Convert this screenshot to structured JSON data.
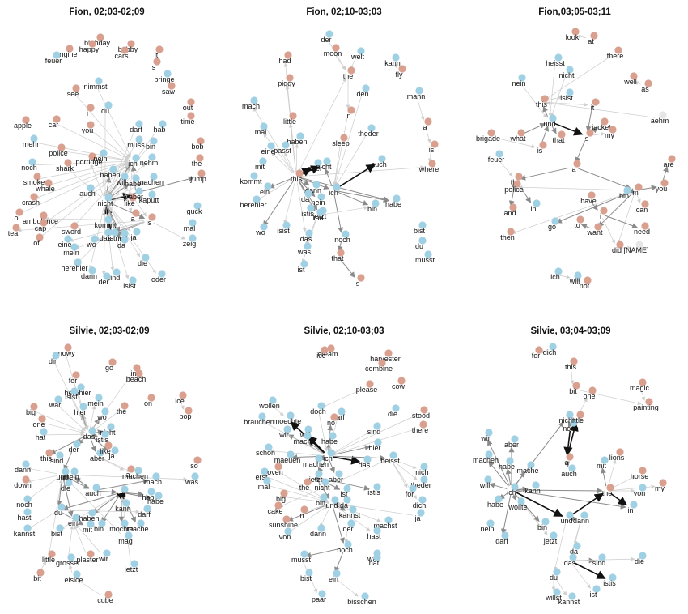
{
  "colors": {
    "english": "#d9a08f",
    "german": "#9fd0e3",
    "neutral": "#e6e6e6",
    "edge_light": "#cccccc",
    "edge_mid": "#8a8a8a",
    "edge_dark": "#111111"
  },
  "panels": [
    {
      "title": "Fion, 02;03-02;09",
      "nodes": [
        [
          "birthday",
          "e"
        ],
        [
          "happy",
          "e"
        ],
        [
          "bobby",
          "e"
        ],
        [
          "cars",
          "e"
        ],
        [
          "engine",
          "e"
        ],
        [
          "feuer",
          "g"
        ],
        [
          "it",
          "e"
        ],
        [
          "s",
          "e"
        ],
        [
          "bringe",
          "g"
        ],
        [
          "saw",
          "e"
        ],
        [
          "nimmst",
          "g"
        ],
        [
          "see",
          "e"
        ],
        [
          "du",
          "g"
        ],
        [
          "i",
          "e"
        ],
        [
          "you",
          "e"
        ],
        [
          "out",
          "e"
        ],
        [
          "time",
          "e"
        ],
        [
          "apple",
          "e"
        ],
        [
          "car",
          "e"
        ],
        [
          "darf",
          "g"
        ],
        [
          "hab",
          "g"
        ],
        [
          "mehr",
          "g"
        ],
        [
          "police",
          "e"
        ],
        [
          "muss",
          "g"
        ],
        [
          "bin",
          "g"
        ],
        [
          "bob",
          "e"
        ],
        [
          "noch",
          "g"
        ],
        [
          "shark",
          "e"
        ],
        [
          "porridge",
          "e"
        ],
        [
          "nein",
          "g"
        ],
        [
          "ich",
          "g"
        ],
        [
          "nehm",
          "g"
        ],
        [
          "the",
          "e"
        ],
        [
          "smoke",
          "e"
        ],
        [
          "whale",
          "e"
        ],
        [
          "haben",
          "g"
        ],
        [
          "will",
          "g"
        ],
        [
          "habe",
          "g"
        ],
        [
          "machen",
          "g"
        ],
        [
          "jump",
          "e"
        ],
        [
          "crash",
          "e"
        ],
        [
          "auch",
          "g"
        ],
        [
          "nicht",
          "g"
        ],
        [
          "like",
          "e"
        ],
        [
          "aber",
          "g"
        ],
        [
          "kaputt",
          "g"
        ],
        [
          "ambulance",
          "e"
        ],
        [
          "o",
          "e"
        ],
        [
          "tea",
          "e"
        ],
        [
          "cap",
          "e"
        ],
        [
          "sword",
          "e"
        ],
        [
          "kommt",
          "g"
        ],
        [
          "a",
          "e"
        ],
        [
          "is",
          "e"
        ],
        [
          "guck",
          "g"
        ],
        [
          "of",
          "e"
        ],
        [
          "eine",
          "g"
        ],
        [
          "wo",
          "g"
        ],
        [
          "das",
          "g"
        ],
        [
          "ist",
          "g"
        ],
        [
          "und",
          "g"
        ],
        [
          "da",
          "g"
        ],
        [
          "ja",
          "g"
        ],
        [
          "mal",
          "g"
        ],
        [
          "zeig",
          "g"
        ],
        [
          "mein",
          "g"
        ],
        [
          "herehier",
          "g"
        ],
        [
          "die",
          "g"
        ],
        [
          "dann",
          "g"
        ],
        [
          "sind",
          "g"
        ],
        [
          "oder",
          "g"
        ],
        [
          "der",
          "g"
        ],
        [
          "isist",
          "g"
        ]
      ]
    },
    {
      "title": "Fion, 02;10-03;03",
      "nodes": [
        [
          "der",
          "g"
        ],
        [
          "moon",
          "e"
        ],
        [
          "welt",
          "g"
        ],
        [
          "had",
          "e"
        ],
        [
          "kann",
          "g"
        ],
        [
          "fly",
          "e"
        ],
        [
          "piggy",
          "e"
        ],
        [
          "the",
          "e"
        ],
        [
          "den",
          "g"
        ],
        [
          "mach",
          "g"
        ],
        [
          "mann",
          "g"
        ],
        [
          "in",
          "e"
        ],
        [
          "theder",
          "g"
        ],
        [
          "little",
          "e"
        ],
        [
          "mal",
          "g"
        ],
        [
          "a",
          "e"
        ],
        [
          "haben",
          "g"
        ],
        [
          "passt",
          "g"
        ],
        [
          "sleep",
          "e"
        ],
        [
          "eine",
          "g"
        ],
        [
          "is",
          "e"
        ],
        [
          "mit",
          "g"
        ],
        [
          "where",
          "e"
        ],
        [
          "kommt",
          "g"
        ],
        [
          "this",
          "e"
        ],
        [
          "aber",
          "g"
        ],
        [
          "nicht",
          "g"
        ],
        [
          "auch",
          "g"
        ],
        [
          "ein",
          "g"
        ],
        [
          "dann",
          "g"
        ],
        [
          "da",
          "g"
        ],
        [
          "nein",
          "g"
        ],
        [
          "ich",
          "g"
        ],
        [
          "herehier",
          "g"
        ],
        [
          "istis",
          "g"
        ],
        [
          "jetzt",
          "g"
        ],
        [
          "habe",
          "g"
        ],
        [
          "und",
          "g"
        ],
        [
          "bin",
          "g"
        ],
        [
          "wo",
          "g"
        ],
        [
          "isist",
          "g"
        ],
        [
          "das",
          "g"
        ],
        [
          "noch",
          "g"
        ],
        [
          "bist",
          "g"
        ],
        [
          "du",
          "g"
        ],
        [
          "was",
          "g"
        ],
        [
          "that",
          "e"
        ],
        [
          "musst",
          "g"
        ],
        [
          "ist",
          "g"
        ],
        [
          "s",
          "e"
        ]
      ]
    },
    {
      "title": "Fion,03;05-03;11",
      "nodes": [
        [
          "look",
          "e"
        ],
        [
          "at",
          "e"
        ],
        [
          "there",
          "e"
        ],
        [
          "heisst",
          "g"
        ],
        [
          "nicht",
          "g"
        ],
        [
          "nein",
          "g"
        ],
        [
          "well",
          "e"
        ],
        [
          "as",
          "e"
        ],
        [
          "isist",
          "g"
        ],
        [
          "this",
          "e"
        ],
        [
          "it",
          "e"
        ],
        [
          "jacket",
          "e"
        ],
        [
          "aehm",
          "n"
        ],
        [
          "brigade",
          "e"
        ],
        [
          "what",
          "e"
        ],
        [
          "und",
          "g"
        ],
        [
          "my",
          "e"
        ],
        [
          "that",
          "e"
        ],
        [
          "s",
          "e"
        ],
        [
          "is",
          "e"
        ],
        [
          "feuer",
          "g"
        ],
        [
          "are",
          "e"
        ],
        [
          "a",
          "e"
        ],
        [
          "the",
          "e"
        ],
        [
          "you",
          "e"
        ],
        [
          "police",
          "e"
        ],
        [
          "bin",
          "g"
        ],
        [
          "m",
          "e"
        ],
        [
          "have",
          "e"
        ],
        [
          "in",
          "g"
        ],
        [
          "can",
          "e"
        ],
        [
          "and",
          "e"
        ],
        [
          "to",
          "e"
        ],
        [
          "i",
          "e"
        ],
        [
          "go",
          "g"
        ],
        [
          "want",
          "e"
        ],
        [
          "need",
          "e"
        ],
        [
          "then",
          "e"
        ],
        [
          "did",
          "e"
        ],
        [
          "[NAME]",
          "n"
        ],
        [
          "ich",
          "g"
        ],
        [
          "will",
          "g"
        ],
        [
          "not",
          "e"
        ]
      ]
    },
    {
      "title": "Silvie, 02;03-02;09",
      "nodes": [
        [
          "snowy",
          "e"
        ],
        [
          "dir",
          "g"
        ],
        [
          "go",
          "e"
        ],
        [
          "in",
          "e"
        ],
        [
          "beach",
          "e"
        ],
        [
          "for",
          "e"
        ],
        [
          "herehier",
          "g"
        ],
        [
          "on",
          "e"
        ],
        [
          "ice",
          "e"
        ],
        [
          "isist",
          "g"
        ],
        [
          "pop",
          "e"
        ],
        [
          "war",
          "g"
        ],
        [
          "mein",
          "g"
        ],
        [
          "big",
          "e"
        ],
        [
          "hier",
          "g"
        ],
        [
          "the",
          "e"
        ],
        [
          "wo",
          "g"
        ],
        [
          "one",
          "e"
        ],
        [
          "nicht",
          "g"
        ],
        [
          "hat",
          "g"
        ],
        [
          "das",
          "g"
        ],
        [
          "istis",
          "g"
        ],
        [
          "der",
          "g"
        ],
        [
          "ja",
          "g"
        ],
        [
          "this",
          "e"
        ],
        [
          "sind",
          "g"
        ],
        [
          "aber",
          "g"
        ],
        [
          "like",
          "e"
        ],
        [
          "dann",
          "g"
        ],
        [
          "a",
          "e"
        ],
        [
          "machen",
          "g"
        ],
        [
          "so",
          "e"
        ],
        [
          "und",
          "g"
        ],
        [
          "mein",
          "g"
        ],
        [
          "mach",
          "g"
        ],
        [
          "was",
          "g"
        ],
        [
          "down",
          "e"
        ],
        [
          "die",
          "g"
        ],
        [
          "auch",
          "g"
        ],
        [
          "hab",
          "g"
        ],
        [
          "habe",
          "g"
        ],
        [
          "noch",
          "g"
        ],
        [
          "ich",
          "g"
        ],
        [
          "darf",
          "g"
        ],
        [
          "hast",
          "g"
        ],
        [
          "du",
          "g"
        ],
        [
          "haben",
          "g"
        ],
        [
          "kann",
          "g"
        ],
        [
          "kannst",
          "g"
        ],
        [
          "ein",
          "g"
        ],
        [
          "mit",
          "g"
        ],
        [
          "bin",
          "g"
        ],
        [
          "mochte",
          "g"
        ],
        [
          "mache",
          "g"
        ],
        [
          "bist",
          "g"
        ],
        [
          "mag",
          "g"
        ],
        [
          "little",
          "e"
        ],
        [
          "grosser",
          "g"
        ],
        [
          "plaster",
          "e"
        ],
        [
          "wir",
          "g"
        ],
        [
          "jetzt",
          "g"
        ],
        [
          "bit",
          "e"
        ],
        [
          "eisice",
          "g"
        ],
        [
          "cube",
          "e"
        ]
      ]
    },
    {
      "title": "Silvie, 02;10-03;03",
      "nodes": [
        [
          "cream",
          "e"
        ],
        [
          "ice",
          "e"
        ],
        [
          "harvester",
          "e"
        ],
        [
          "combine",
          "e"
        ],
        [
          "cow",
          "e"
        ],
        [
          "please",
          "e"
        ],
        [
          "wollen",
          "g"
        ],
        [
          "doch",
          "g"
        ],
        [
          "die",
          "g"
        ],
        [
          "stood",
          "e"
        ],
        [
          "moechte",
          "g"
        ],
        [
          "darf",
          "g"
        ],
        [
          "sind",
          "g"
        ],
        [
          "there",
          "e"
        ],
        [
          "brauchen",
          "g"
        ],
        [
          "will",
          "g"
        ],
        [
          "no",
          "e"
        ],
        [
          "wir",
          "g"
        ],
        [
          "mache",
          "g"
        ],
        [
          "habe",
          "g"
        ],
        [
          "hier",
          "g"
        ],
        [
          "schon",
          "g"
        ],
        [
          "maeuen",
          "g"
        ],
        [
          "machen",
          "g"
        ],
        [
          "ich",
          "g"
        ],
        [
          "das",
          "g"
        ],
        [
          "heisst",
          "g"
        ],
        [
          "erst",
          "g"
        ],
        [
          "oven",
          "e"
        ],
        [
          "jetzt",
          "g"
        ],
        [
          "aber",
          "g"
        ],
        [
          "mich",
          "g"
        ],
        [
          "mal",
          "g"
        ],
        [
          "the",
          "e"
        ],
        [
          "nicht",
          "g"
        ],
        [
          "ist",
          "g"
        ],
        [
          "istis",
          "g"
        ],
        [
          "theder",
          "g"
        ],
        [
          "big",
          "e"
        ],
        [
          "und",
          "g"
        ],
        [
          "da",
          "g"
        ],
        [
          "for",
          "g"
        ],
        [
          "dich",
          "g"
        ],
        [
          "cake",
          "e"
        ],
        [
          "in",
          "e"
        ],
        [
          "bin",
          "g"
        ],
        [
          "kannst",
          "g"
        ],
        [
          "sunshine",
          "e"
        ],
        [
          "machst",
          "g"
        ],
        [
          "ja",
          "g"
        ],
        [
          "von",
          "g"
        ],
        [
          "dann",
          "g"
        ],
        [
          "der",
          "g"
        ],
        [
          "hast",
          "g"
        ],
        [
          "noch",
          "g"
        ],
        [
          "musst",
          "g"
        ],
        [
          "was",
          "g"
        ],
        [
          "hat",
          "g"
        ],
        [
          "bist",
          "g"
        ],
        [
          "ein",
          "g"
        ],
        [
          "paar",
          "g"
        ],
        [
          "bisschen",
          "g"
        ],
        [
          "shapes",
          "e"
        ]
      ]
    },
    {
      "title": "Silvie, 03;04-03;09",
      "nodes": [
        [
          "for",
          "e"
        ],
        [
          "dich",
          "g"
        ],
        [
          "this",
          "e"
        ],
        [
          "magic",
          "e"
        ],
        [
          "bit",
          "e"
        ],
        [
          "one",
          "e"
        ],
        [
          "painting",
          "e"
        ],
        [
          "nicht",
          "g"
        ],
        [
          "noch",
          "g"
        ],
        [
          "little",
          "e"
        ],
        [
          "wir",
          "g"
        ],
        [
          "aber",
          "g"
        ],
        [
          "lions",
          "e"
        ],
        [
          "a",
          "e"
        ],
        [
          "mit",
          "g"
        ],
        [
          "machen",
          "g"
        ],
        [
          "habe",
          "g"
        ],
        [
          "mache",
          "g"
        ],
        [
          "horse",
          "e"
        ],
        [
          "auch",
          "g"
        ],
        [
          "my",
          "e"
        ],
        [
          "will",
          "g"
        ],
        [
          "ich",
          "g"
        ],
        [
          "kann",
          "g"
        ],
        [
          "the",
          "e"
        ],
        [
          "von",
          "g"
        ],
        [
          "in",
          "g"
        ],
        [
          "habe",
          "g"
        ],
        [
          "wollte",
          "g"
        ],
        [
          "und",
          "g"
        ],
        [
          "dann",
          "g"
        ],
        [
          "nein",
          "g"
        ],
        [
          "bin",
          "g"
        ],
        [
          "darf",
          "g"
        ],
        [
          "jetzt",
          "g"
        ],
        [
          "da",
          "g"
        ],
        [
          "das",
          "g"
        ],
        [
          "sind",
          "g"
        ],
        [
          "die",
          "g"
        ],
        [
          "du",
          "g"
        ],
        [
          "istis",
          "g"
        ],
        [
          "willst",
          "g"
        ],
        [
          "kannst",
          "g"
        ],
        [
          "ist",
          "g"
        ]
      ]
    }
  ]
}
